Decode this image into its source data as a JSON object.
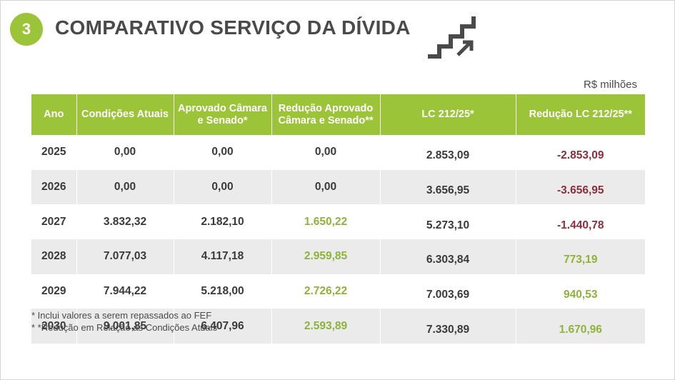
{
  "header": {
    "badge": "3",
    "title": "COMPARATIVO SERVIÇO DA DÍVIDA",
    "icon": "stairs-arrow-icon",
    "unit": "R$ milhões"
  },
  "colors": {
    "accent": "#9cc439",
    "positive": "#8fb33a",
    "negative": "#8f2d3b",
    "stripe": "#ebebeb"
  },
  "table": {
    "columns": [
      "Ano",
      "Condições Atuais",
      "Aprovado Câmara e Senado*",
      "Redução Aprovado Câmara e Senado**",
      "LC 212/25*",
      "Redução LC 212/25**"
    ],
    "rows": [
      {
        "ano": "2025",
        "atuais": "0,00",
        "aprovado": "0,00",
        "reducao_aprovado": "0,00",
        "lc": "2.853,09",
        "reducao_lc": "-2.853,09"
      },
      {
        "ano": "2026",
        "atuais": "0,00",
        "aprovado": "0,00",
        "reducao_aprovado": "0,00",
        "lc": "3.656,95",
        "reducao_lc": "-3.656,95"
      },
      {
        "ano": "2027",
        "atuais": "3.832,32",
        "aprovado": "2.182,10",
        "reducao_aprovado": "1.650,22",
        "lc": "5.273,10",
        "reducao_lc": "-1.440,78"
      },
      {
        "ano": "2028",
        "atuais": "7.077,03",
        "aprovado": "4.117,18",
        "reducao_aprovado": "2.959,85",
        "lc": "6.303,84",
        "reducao_lc": "773,19"
      },
      {
        "ano": "2029",
        "atuais": "7.944,22",
        "aprovado": "5.218,00",
        "reducao_aprovado": "2.726,22",
        "lc": "7.003,69",
        "reducao_lc": "940,53"
      },
      {
        "ano": "2030",
        "atuais": "9.001,85",
        "aprovado": "6.407,96",
        "reducao_aprovado": "2.593,89",
        "lc": "7.330,89",
        "reducao_lc": "1.670,96"
      }
    ]
  },
  "footnotes": [
    "* Inclui valores a serem repassados ao FEF",
    "* *Redução em Relação às Condições Atuais"
  ]
}
